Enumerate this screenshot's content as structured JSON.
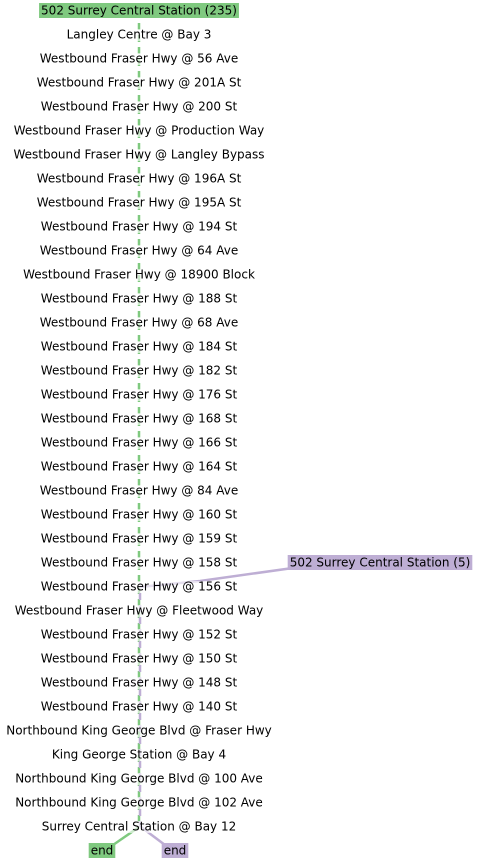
{
  "routes": [
    {
      "label": "502 Surrey Central Station (235)",
      "color": "#7fc97f",
      "end": "end"
    },
    {
      "label": "502 Surrey Central Station (5)",
      "color": "#beaed4",
      "end": "end"
    }
  ],
  "stops": [
    "Langley Centre @ Bay 3",
    "Westbound Fraser Hwy @ 56 Ave",
    "Westbound Fraser Hwy @ 201A St",
    "Westbound Fraser Hwy @ 200 St",
    "Westbound Fraser Hwy @ Production Way",
    "Westbound Fraser Hwy @ Langley Bypass",
    "Westbound Fraser Hwy @ 196A St",
    "Westbound Fraser Hwy @ 195A St",
    "Westbound Fraser Hwy @ 194 St",
    "Westbound Fraser Hwy @ 64 Ave",
    "Westbound Fraser Hwy @ 18900 Block",
    "Westbound Fraser Hwy @ 188 St",
    "Westbound Fraser Hwy @ 68 Ave",
    "Westbound Fraser Hwy @ 184 St",
    "Westbound Fraser Hwy @ 182 St",
    "Westbound Fraser Hwy @ 176 St",
    "Westbound Fraser Hwy @ 168 St",
    "Westbound Fraser Hwy @ 166 St",
    "Westbound Fraser Hwy @ 164 St",
    "Westbound Fraser Hwy @ 84 Ave",
    "Westbound Fraser Hwy @ 160 St",
    "Westbound Fraser Hwy @ 159 St",
    "Westbound Fraser Hwy @ 158 St",
    "Westbound Fraser Hwy @ 156 St",
    "Westbound Fraser Hwy @ Fleetwood Way",
    "Westbound Fraser Hwy @ 152 St",
    "Westbound Fraser Hwy @ 150 St",
    "Westbound Fraser Hwy @ 148 St",
    "Westbound Fraser Hwy @ 140 St",
    "Northbound King George Blvd @ Fraser Hwy",
    "King George Station @ Bay 4",
    "Northbound King George Blvd @ 100 Ave",
    "Northbound King George Blvd @ 102 Ave",
    "Surrey Central Station @ Bay 12"
  ]
}
